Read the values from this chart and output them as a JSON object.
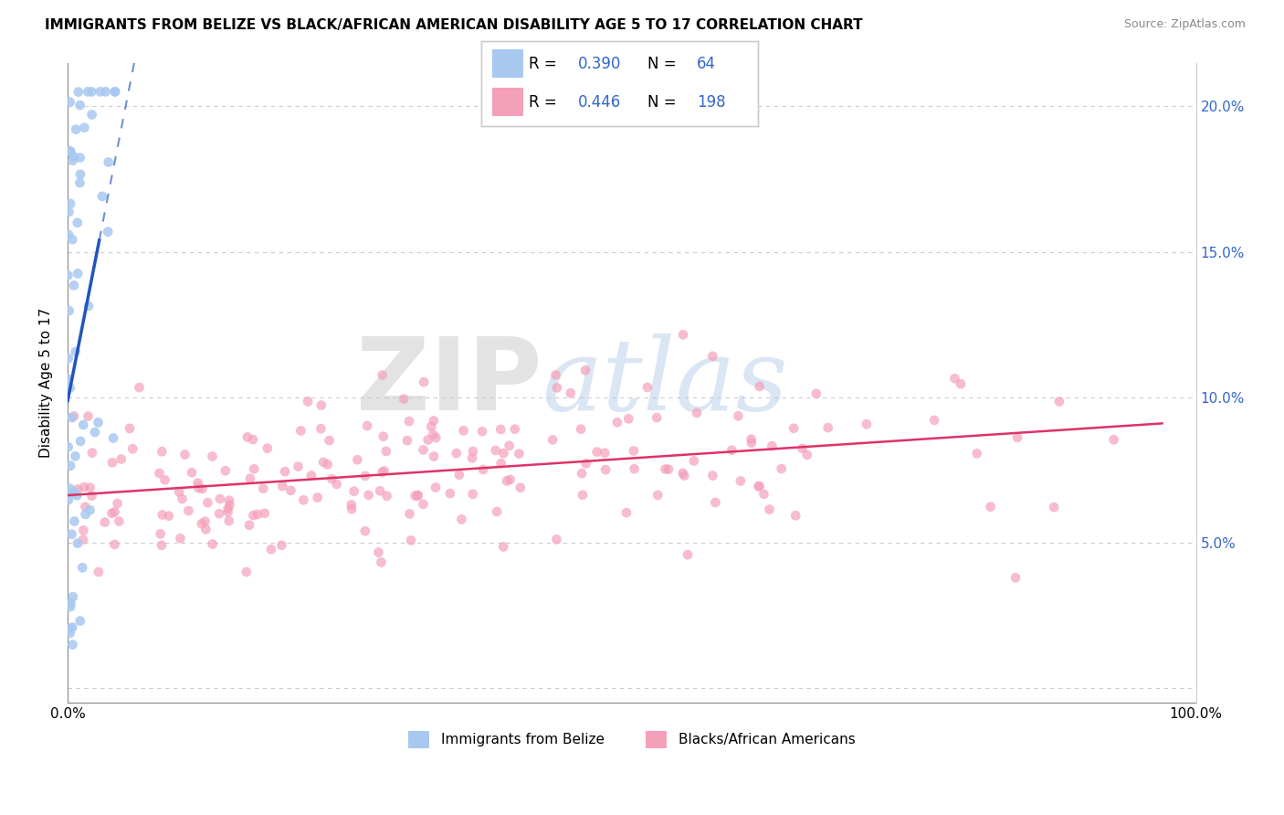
{
  "title": "IMMIGRANTS FROM BELIZE VS BLACK/AFRICAN AMERICAN DISABILITY AGE 5 TO 17 CORRELATION CHART",
  "source": "Source: ZipAtlas.com",
  "ylabel": "Disability Age 5 to 17",
  "blue_R": 0.39,
  "blue_N": 64,
  "pink_R": 0.446,
  "pink_N": 198,
  "blue_color": "#a8c8f0",
  "pink_color": "#f4a0b8",
  "blue_line_color": "#2255bb",
  "pink_line_color": "#dd3366",
  "legend_label_1": "Immigrants from Belize",
  "legend_label_2": "Blacks/African Americans",
  "watermark_zip": "ZIP",
  "watermark_atlas": "atlas",
  "xlim": [
    0.0,
    1.0
  ],
  "ylim": [
    -0.005,
    0.215
  ],
  "yticks": [
    0.0,
    0.05,
    0.1,
    0.15,
    0.2
  ],
  "ytick_labels_right": [
    "",
    "5.0%",
    "10.0%",
    "15.0%",
    "20.0%"
  ],
  "background_color": "#ffffff",
  "title_fontsize": 11,
  "accent_color": "#3366cc",
  "grid_color": "#cccccc"
}
